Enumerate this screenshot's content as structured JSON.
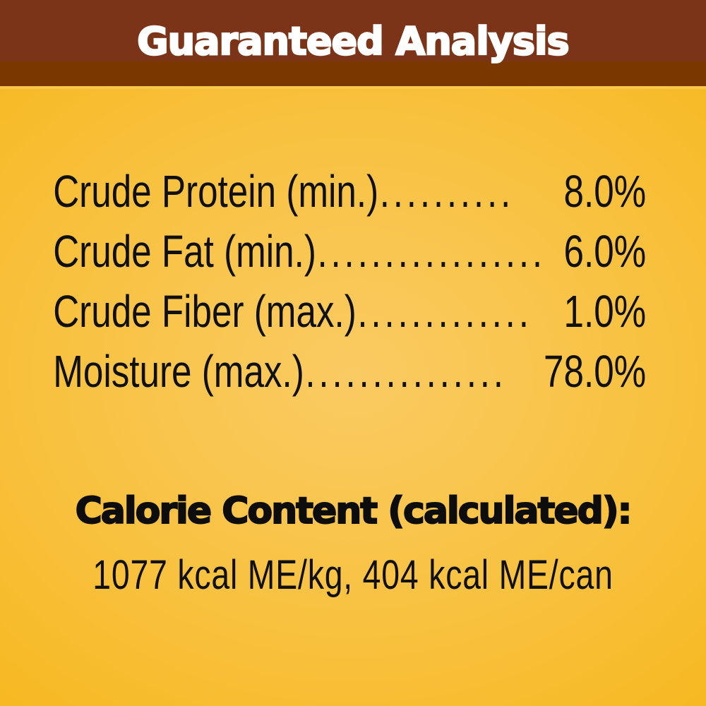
{
  "header": {
    "title": "Guaranteed Analysis",
    "bar_color_top": "#7b3417",
    "bar_color_bottom": "#7a3800",
    "text_color": "#ffffff"
  },
  "background": {
    "center_color": "#facb63",
    "edge_color": "#f6b414",
    "highlight_line_color": "#f8c74e",
    "text_color": "#101010"
  },
  "analysis": {
    "rows": [
      {
        "label": "Crude Protein (min.)",
        "dots": "..........",
        "value": "8.0%"
      },
      {
        "label": "Crude Fat (min.)",
        "dots": ".................",
        "value": "6.0%"
      },
      {
        "label": "Crude Fiber (max.)",
        "dots": ".............",
        "value": "1.0%"
      },
      {
        "label": "Moisture (max.)",
        "dots": "...............",
        "value": "78.0%"
      }
    ]
  },
  "calories": {
    "heading": "Calorie Content (calculated):",
    "line": "1077 kcal ME/kg, 404 kcal ME/can"
  }
}
